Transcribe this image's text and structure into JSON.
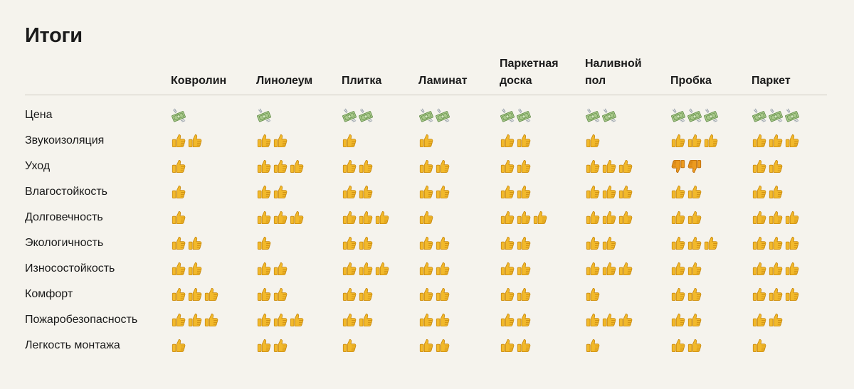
{
  "title": "Итоги",
  "columns": [
    {
      "lines": [
        "Ковролин"
      ]
    },
    {
      "lines": [
        "Линолеум"
      ]
    },
    {
      "lines": [
        "Плитка"
      ]
    },
    {
      "lines": [
        "Ламинат"
      ]
    },
    {
      "lines": [
        "Паркетная",
        "доска"
      ]
    },
    {
      "lines": [
        "Наливной",
        "пол"
      ]
    },
    {
      "lines": [
        "Пробка"
      ]
    },
    {
      "lines": [
        "Паркет"
      ]
    }
  ],
  "rows": [
    {
      "label": "Цена",
      "icon": "money-icon",
      "counts": [
        1,
        1,
        2,
        2,
        2,
        2,
        3,
        3
      ]
    },
    {
      "label": "Звукоизоляция",
      "icon": "thumbs-up-icon",
      "counts": [
        2,
        2,
        1,
        1,
        2,
        1,
        3,
        3
      ]
    },
    {
      "label": "Уход",
      "icon": "thumbs-up-icon",
      "counts": [
        1,
        3,
        2,
        2,
        2,
        3,
        2,
        2
      ],
      "overrides": {
        "6": "thumbs-down-icon"
      }
    },
    {
      "label": "Влагостойкость",
      "icon": "thumbs-up-icon",
      "counts": [
        1,
        2,
        2,
        2,
        2,
        3,
        2,
        2
      ]
    },
    {
      "label": "Долговечность",
      "icon": "thumbs-up-icon",
      "counts": [
        1,
        3,
        3,
        1,
        3,
        3,
        2,
        3
      ]
    },
    {
      "label": "Экологичность",
      "icon": "thumbs-up-icon",
      "counts": [
        2,
        1,
        2,
        2,
        2,
        2,
        3,
        3
      ]
    },
    {
      "label": "Износостойкость",
      "icon": "thumbs-up-icon",
      "counts": [
        2,
        2,
        3,
        2,
        2,
        3,
        2,
        3
      ]
    },
    {
      "label": "Комфорт",
      "icon": "thumbs-up-icon",
      "counts": [
        3,
        2,
        2,
        2,
        2,
        1,
        2,
        3
      ]
    },
    {
      "label": "Пожаробезопасность",
      "icon": "thumbs-up-icon",
      "counts": [
        3,
        3,
        2,
        2,
        2,
        3,
        2,
        2
      ]
    },
    {
      "label": "Легкость монтажа",
      "icon": "thumbs-up-icon",
      "counts": [
        1,
        2,
        1,
        2,
        2,
        1,
        2,
        1
      ]
    }
  ],
  "colors": {
    "background": "#f5f3ed",
    "text": "#1a1a1a",
    "divider": "#cfccc2",
    "thumb": "#f2b92b",
    "money": "#9cbf7a"
  }
}
